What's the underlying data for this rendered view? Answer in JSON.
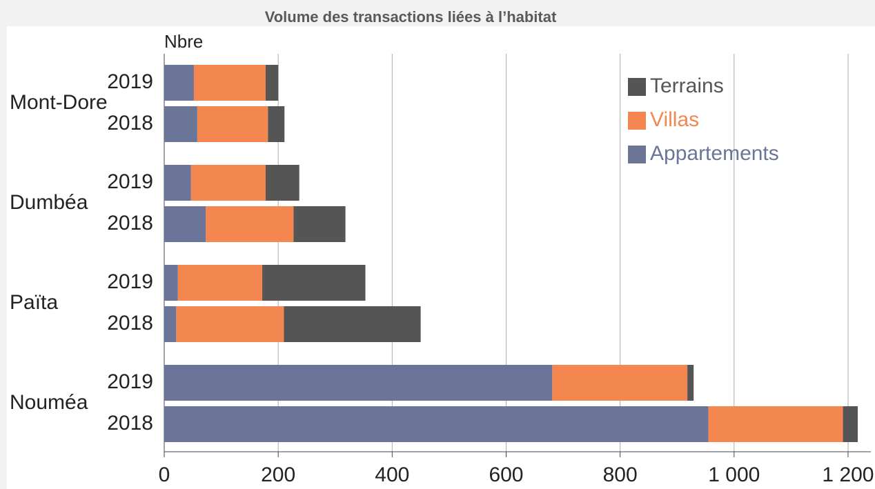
{
  "chart_data": {
    "type": "stacked-barh",
    "title": "Volume des transactions liées à l’habitat",
    "xlabel": "Nbre",
    "groups": [
      "Mont-Dore",
      "Dumbéa",
      "Païta",
      "Nouméa"
    ],
    "categories": [
      "2019",
      "2018",
      "2019",
      "2018",
      "2019",
      "2018",
      "2019",
      "2018"
    ],
    "series": [
      {
        "name": "Appartements",
        "color": "#6b7598",
        "values": [
          52,
          58,
          47,
          73,
          24,
          21,
          681,
          955
        ]
      },
      {
        "name": "Villas",
        "color": "#f4874f",
        "values": [
          126,
          124,
          131,
          154,
          148,
          189,
          237,
          236
        ]
      },
      {
        "name": "Terrains",
        "color": "#555555",
        "values": [
          22,
          29,
          59,
          91,
          181,
          240,
          11,
          26
        ]
      }
    ],
    "xlim": [
      0,
      1240
    ],
    "xticks": [
      0,
      200,
      400,
      600,
      800,
      {
        "value": 1000,
        "label": "1 000"
      },
      {
        "value": 1200,
        "label": "1 200"
      }
    ],
    "grid": true,
    "legend": "upper right"
  }
}
